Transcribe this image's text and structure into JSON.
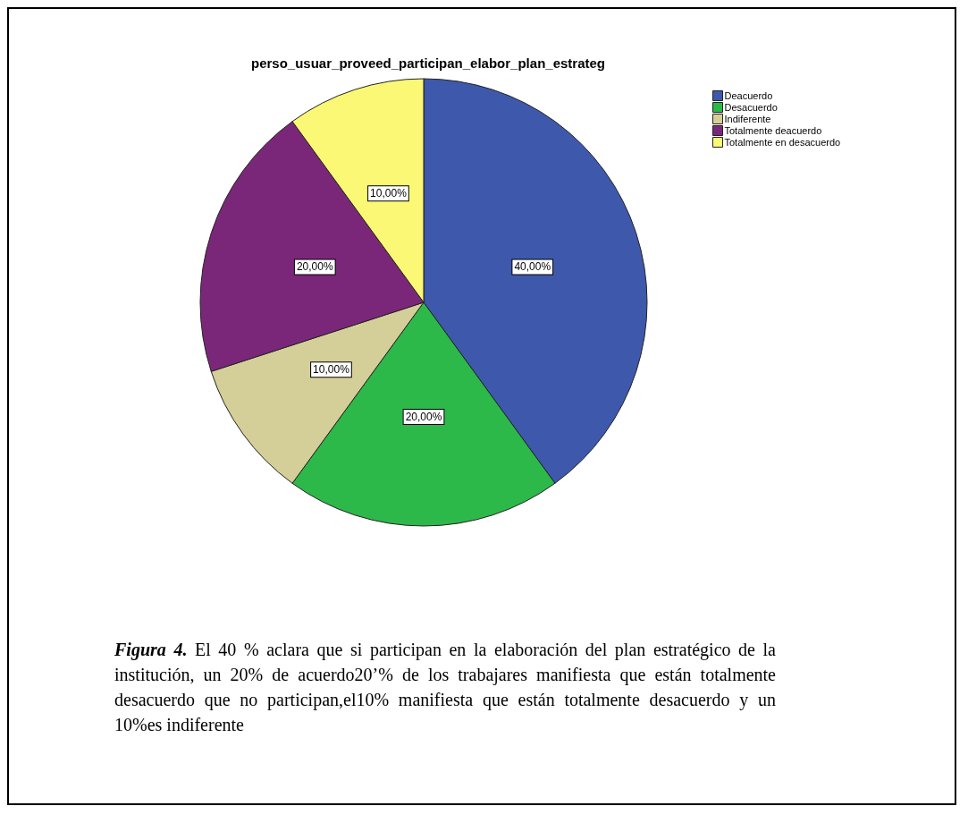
{
  "chart_data": {
    "type": "pie",
    "title": "perso_usuar_proveed_participan_elabor_plan_estrateg",
    "categories": [
      "Deacuerdo",
      "Desacuerdo",
      "Indiferente",
      "Totalmente deacuerdo",
      "Totalmente en desacuerdo"
    ],
    "values": [
      40,
      20,
      10,
      20,
      10
    ],
    "colors": [
      "#3e58ac",
      "#2db84a",
      "#d4cf98",
      "#7b2779",
      "#fbf876"
    ],
    "value_labels": [
      "40,00%",
      "20,00%",
      "10,00%",
      "20,00%",
      "10,00%"
    ],
    "legend": "top right",
    "annotations": [
      "Figura 4. El 40 % aclara que si participan en la elaboración del plan estratégico de la institución, un 20% de acuerdo20’% de  los trabajares manifiesta que están totalmente desacuerdo que no participan,el10%  manifiesta que están totalmente desacuerdo y un 10%es indiferente"
    ]
  }
}
